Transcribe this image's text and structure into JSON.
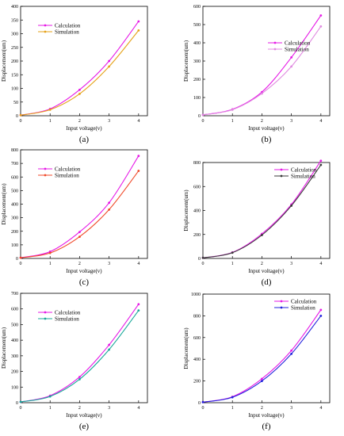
{
  "chart_data": [
    {
      "type": "line",
      "panel_label": "(a)",
      "xlabel": "Input voltage(v)",
      "ylabel": "Displacement(um)",
      "xlim": [
        0,
        4.3
      ],
      "ylim": [
        0,
        400
      ],
      "x_ticks": [
        0,
        1,
        2,
        3,
        4
      ],
      "y_ticks": [
        0,
        50,
        100,
        150,
        200,
        250,
        300,
        350,
        400
      ],
      "legend_position": "top-left",
      "x": [
        0,
        1,
        2,
        3,
        4
      ],
      "series": [
        {
          "name": "Calculation",
          "color": "#e619e6",
          "values": [
            2,
            25,
            95,
            200,
            345
          ]
        },
        {
          "name": "Simulation",
          "color": "#e6a21a",
          "values": [
            2,
            22,
            80,
            180,
            312
          ]
        }
      ]
    },
    {
      "type": "line",
      "panel_label": "(b)",
      "xlabel": "Input voltage(v)",
      "ylabel": "Displacement(um)",
      "xlim": [
        0,
        4.3
      ],
      "ylim": [
        0,
        600
      ],
      "x_ticks": [
        0,
        1,
        2,
        3,
        4
      ],
      "y_ticks": [
        0,
        100,
        200,
        300,
        400,
        500,
        600
      ],
      "legend_position": "center-right",
      "x": [
        0,
        1,
        2,
        3,
        4
      ],
      "series": [
        {
          "name": "Calculation",
          "color": "#e619e6",
          "values": [
            5,
            35,
            130,
            320,
            550
          ]
        },
        {
          "name": "Simulation",
          "color": "#e08ae0",
          "values": [
            5,
            33,
            122,
            270,
            490
          ]
        }
      ]
    },
    {
      "type": "line",
      "panel_label": "(c)",
      "xlabel": "Input voltage(v)",
      "ylabel": "Displacement(um)",
      "xlim": [
        0,
        4.3
      ],
      "ylim": [
        0,
        800
      ],
      "x_ticks": [
        0,
        1,
        2,
        3,
        4
      ],
      "y_ticks": [
        0,
        100,
        200,
        300,
        400,
        500,
        600,
        700,
        800
      ],
      "legend_position": "top-left",
      "x": [
        0,
        1,
        2,
        3,
        4
      ],
      "series": [
        {
          "name": "Calculation",
          "color": "#e619e6",
          "values": [
            5,
            50,
            195,
            410,
            755
          ]
        },
        {
          "name": "Simulation",
          "color": "#f04a2a",
          "values": [
            5,
            40,
            160,
            360,
            645
          ]
        }
      ]
    },
    {
      "type": "line",
      "panel_label": "(d)",
      "xlabel": "Input voltage(v)",
      "ylabel": "Displacement(um)",
      "xlim": [
        0,
        4.3
      ],
      "ylim": [
        0,
        800
      ],
      "x_ticks": [
        0,
        1,
        2,
        3,
        4
      ],
      "y_ticks": [
        0,
        200,
        400,
        600,
        800
      ],
      "legend_position": "top-right",
      "x": [
        0,
        1,
        2,
        3,
        4
      ],
      "series": [
        {
          "name": "Calculation",
          "color": "#e619e6",
          "values": [
            5,
            50,
            205,
            450,
            815
          ]
        },
        {
          "name": "Simulation",
          "color": "#3a3a3a",
          "values": [
            5,
            48,
            195,
            440,
            780
          ]
        }
      ]
    },
    {
      "type": "line",
      "panel_label": "(e)",
      "xlabel": "Input voltage(v)",
      "ylabel": "Displacement(um)",
      "xlim": [
        0,
        4.3
      ],
      "ylim": [
        0,
        700
      ],
      "x_ticks": [
        0,
        1,
        2,
        3,
        4
      ],
      "y_ticks": [
        0,
        100,
        200,
        300,
        400,
        500,
        600,
        700
      ],
      "legend_position": "top-left",
      "x": [
        0,
        1,
        2,
        3,
        4
      ],
      "series": [
        {
          "name": "Calculation",
          "color": "#e619e6",
          "values": [
            5,
            45,
            165,
            370,
            630
          ]
        },
        {
          "name": "Simulation",
          "color": "#1aa89a",
          "values": [
            5,
            40,
            150,
            340,
            590
          ]
        }
      ]
    },
    {
      "type": "line",
      "panel_label": "(f)",
      "xlabel": "Input voltage(v)",
      "ylabel": "Displacement(um)",
      "xlim": [
        0,
        4.3
      ],
      "ylim": [
        0,
        1000
      ],
      "x_ticks": [
        0,
        1,
        2,
        3,
        4
      ],
      "y_ticks": [
        0,
        200,
        400,
        600,
        800,
        1000
      ],
      "legend_position": "top-right",
      "x": [
        0,
        1,
        2,
        3,
        4
      ],
      "series": [
        {
          "name": "Calculation",
          "color": "#e619e6",
          "values": [
            5,
            55,
            220,
            480,
            855
          ]
        },
        {
          "name": "Simulation",
          "color": "#2222dd",
          "values": [
            5,
            50,
            200,
            450,
            800
          ]
        }
      ]
    }
  ]
}
